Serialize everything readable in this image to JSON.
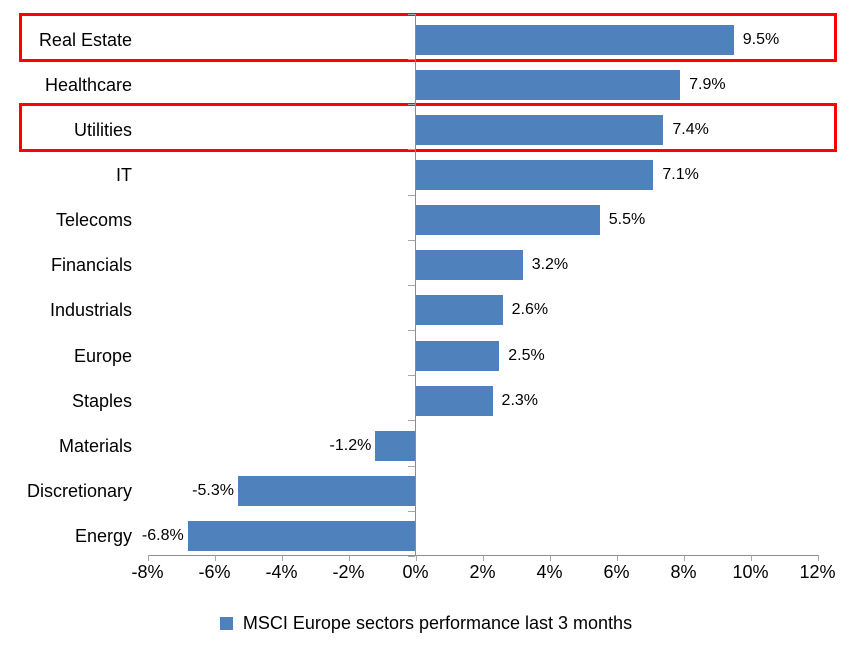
{
  "chart_data": {
    "type": "bar",
    "orientation": "horizontal",
    "title": "",
    "categories": [
      "Real Estate",
      "Healthcare",
      "Utilities",
      "IT",
      "Telecoms",
      "Financials",
      "Industrials",
      "Europe",
      "Staples",
      "Materials",
      "Discretionary",
      "Energy"
    ],
    "values": [
      9.5,
      7.9,
      7.4,
      7.1,
      5.5,
      3.2,
      2.6,
      2.5,
      2.3,
      -1.2,
      -5.3,
      -6.8
    ],
    "value_labels": [
      "9.5%",
      "7.9%",
      "7.4%",
      "7.1%",
      "5.5%",
      "3.2%",
      "2.6%",
      "2.5%",
      "2.3%",
      "-1.2%",
      "-5.3%",
      "-6.8%"
    ],
    "x_ticks": [
      "-8%",
      "-6%",
      "-4%",
      "-2%",
      "0%",
      "2%",
      "4%",
      "6%",
      "8%",
      "10%",
      "12%"
    ],
    "x_tick_values": [
      -8,
      -6,
      -4,
      -2,
      0,
      2,
      4,
      6,
      8,
      10,
      12
    ],
    "xlim": [
      -8,
      12
    ],
    "grid": false,
    "legend": "MSCI Europe sectors performance last 3 months",
    "legend_position": "bottom",
    "bar_color": "#4f81bd",
    "axis_color": "#8c8c8c",
    "tick_color": "#a6a6a6",
    "text_color": "#000000",
    "highlight_color": "#ff0000",
    "highlighted_categories": [
      "Real Estate",
      "Utilities"
    ]
  }
}
